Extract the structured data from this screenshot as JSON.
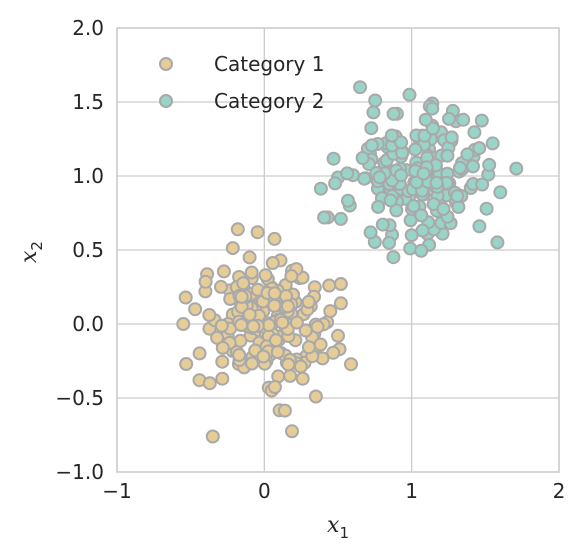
{
  "chart_data": {
    "type": "scatter",
    "title": "",
    "xlabel": "x",
    "xlabel_sub": "1",
    "ylabel": "x",
    "ylabel_sub": "2",
    "xlim": [
      -1,
      2
    ],
    "ylim": [
      -1,
      2
    ],
    "xticks": [
      -1,
      0,
      1,
      2
    ],
    "yticks": [
      -1.0,
      -0.5,
      0.0,
      0.5,
      1.0,
      1.5,
      2.0
    ],
    "xtick_labels": [
      "−1",
      "0",
      "1",
      "2"
    ],
    "ytick_labels": [
      "−1.0",
      "−0.5",
      "0.0",
      "0.5",
      "1.0",
      "1.5",
      "2.0"
    ],
    "grid": true,
    "legend_position": "top-left",
    "marker_edge_color": "#a9a9a9",
    "series": [
      {
        "name": "Category 1",
        "color": "#e6cc97",
        "approx_count": 200,
        "cluster": {
          "center": [
            0.0,
            0.0
          ],
          "spread": [
            0.2,
            0.2
          ]
        },
        "points": [
          [
            -0.18,
            0.64
          ],
          [
            -0.35,
            -0.76
          ],
          [
            -0.55,
            0.0
          ],
          [
            -0.53,
            -0.27
          ],
          [
            -0.44,
            -0.38
          ],
          [
            -0.37,
            -0.4
          ],
          [
            0.35,
            -0.49
          ],
          [
            0.52,
            0.14
          ],
          [
            0.5,
            -0.08
          ],
          [
            0.51,
            -0.17
          ],
          [
            0.44,
            0.26
          ],
          [
            0.36,
            -0.15
          ],
          [
            0.03,
            -0.43
          ],
          [
            0.05,
            -0.45
          ],
          [
            -0.47,
            0.1
          ],
          [
            -0.4,
            0.22
          ],
          [
            0.11,
            0.43
          ],
          [
            0.24,
            0.31
          ],
          [
            -0.1,
            0.45
          ],
          [
            0.19,
            0.04
          ]
        ]
      },
      {
        "name": "Category 2",
        "color": "#98d4c8",
        "approx_count": 200,
        "cluster": {
          "center": [
            1.05,
            1.0
          ],
          "spread": [
            0.22,
            0.2
          ]
        },
        "points": [
          [
            0.65,
            1.6
          ],
          [
            1.71,
            1.05
          ],
          [
            1.55,
            1.22
          ],
          [
            1.52,
            1.01
          ],
          [
            1.3,
            1.37
          ],
          [
            0.43,
            0.72
          ],
          [
            0.52,
            0.71
          ],
          [
            0.99,
            0.51
          ],
          [
            1.0,
            0.6
          ],
          [
            1.14,
            1.49
          ],
          [
            0.74,
            1.43
          ],
          [
            0.5,
            0.99
          ],
          [
            1.35,
            1.38
          ],
          [
            1.28,
            1.44
          ],
          [
            0.48,
            0.95
          ],
          [
            1.46,
            0.66
          ],
          [
            1.21,
            0.61
          ],
          [
            0.58,
            0.8
          ],
          [
            0.9,
            1.42
          ],
          [
            1.42,
            1.13
          ]
        ]
      }
    ]
  }
}
